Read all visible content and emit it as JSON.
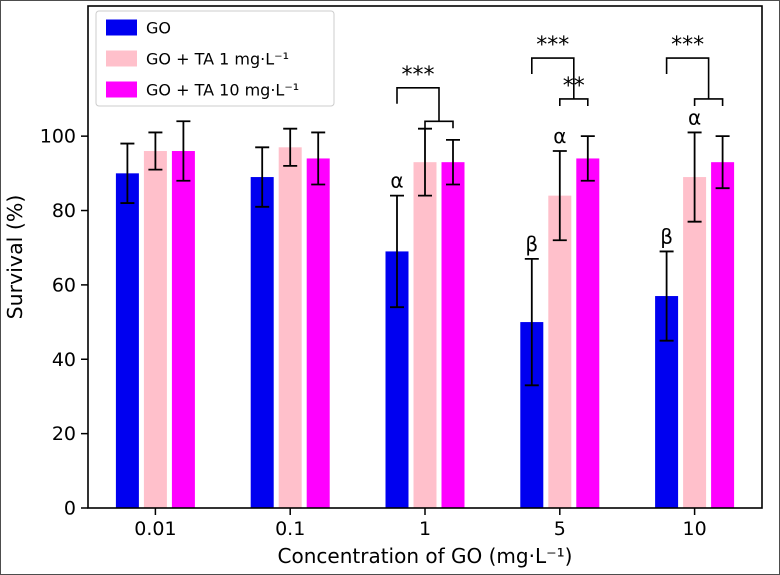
{
  "figure": {
    "background": "#ffffff",
    "border_color": "#4d4d4d"
  },
  "chart_data": {
    "type": "bar",
    "title": "",
    "xlabel": "Concentration of GO (mg·L⁻¹)",
    "ylabel": "Survival (%)",
    "categories": [
      "0.01",
      "0.1",
      "1",
      "5",
      "10"
    ],
    "ylim": [
      0,
      135
    ],
    "yticks": [
      0,
      20,
      40,
      60,
      80,
      100
    ],
    "ytick_labels": [
      "0",
      "20",
      "40",
      "60",
      "80",
      "100"
    ],
    "grid": false,
    "legend": {
      "position": "upper left",
      "items": [
        {
          "label": "GO",
          "color": "#0000f0"
        },
        {
          "label": "GO + TA 1 mg·L⁻¹",
          "color": "#ffc0cb"
        },
        {
          "label": "GO + TA 10 mg·L⁻¹",
          "color": "#ff00ff"
        }
      ]
    },
    "series": [
      {
        "name": "GO",
        "color": "#0000f0",
        "values": [
          90,
          89,
          69,
          50,
          57
        ],
        "errors": [
          8,
          8,
          15,
          17,
          12
        ]
      },
      {
        "name": "GO + TA 1 mg·L⁻¹",
        "color": "#ffc0cb",
        "values": [
          96,
          97,
          93,
          84,
          89
        ],
        "errors": [
          5,
          5,
          9,
          12,
          12
        ]
      },
      {
        "name": "GO + TA 10 mg·L⁻¹",
        "color": "#ff00ff",
        "values": [
          96,
          94,
          93,
          94,
          93
        ],
        "errors": [
          8,
          7,
          6,
          6,
          7
        ]
      }
    ],
    "error_bar_color": "#000000",
    "bar_annotations": [
      {
        "category_index": 2,
        "series_index": 0,
        "label": "α"
      },
      {
        "category_index": 3,
        "series_index": 0,
        "label": "β"
      },
      {
        "category_index": 3,
        "series_index": 1,
        "label": "α"
      },
      {
        "category_index": 4,
        "series_index": 0,
        "label": "β"
      },
      {
        "category_index": 4,
        "series_index": 1,
        "label": "α"
      }
    ],
    "significance_brackets": [
      {
        "category_index": 2,
        "main": {
          "label": "***",
          "height": 113
        },
        "sub": {
          "label": "",
          "height": 104
        }
      },
      {
        "category_index": 3,
        "main": {
          "label": "***",
          "height": 121
        },
        "sub": {
          "label": "**",
          "height": 110
        }
      },
      {
        "category_index": 4,
        "main": {
          "label": "***",
          "height": 121
        },
        "sub": {
          "label": "",
          "height": 110
        }
      }
    ]
  }
}
